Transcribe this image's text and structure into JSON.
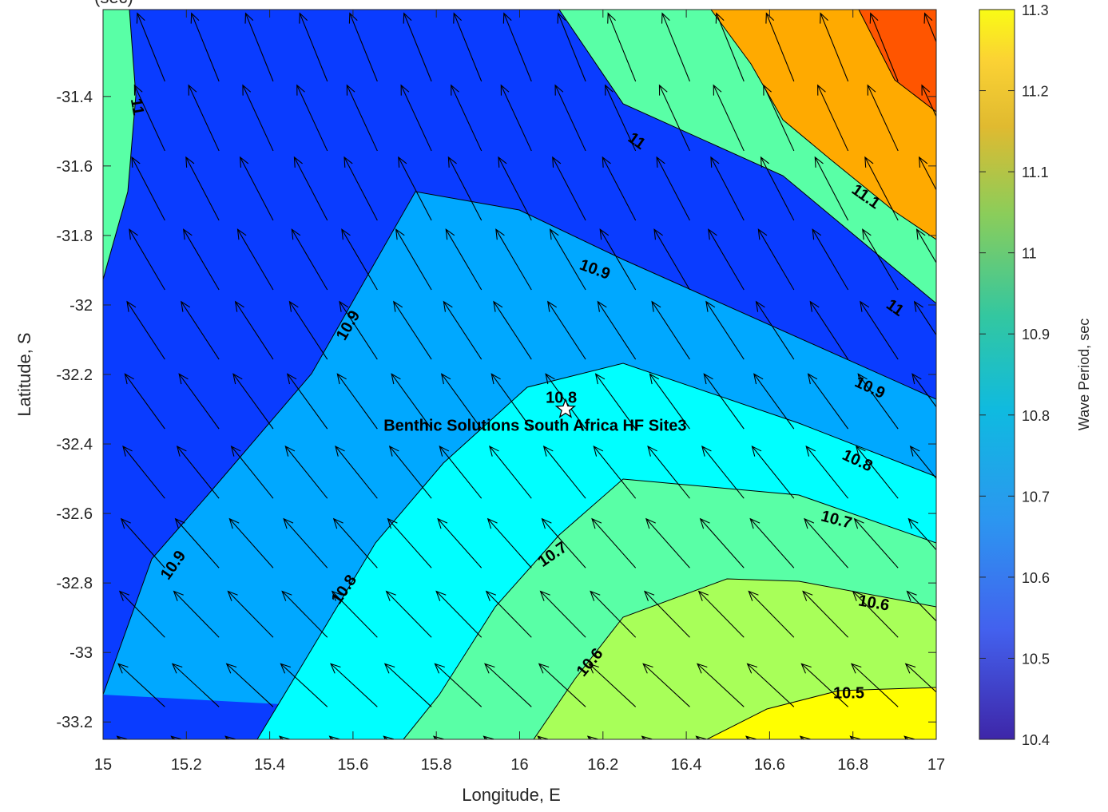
{
  "chart_data": {
    "type": "heatmap",
    "subtype": "filled-contour-with-quiver",
    "title_fragment": "(sec)",
    "xlabel": "Longitude, E",
    "ylabel": "Latitude, S",
    "colorbar_label": "Wave Period, sec",
    "xlim": [
      15,
      17
    ],
    "ylim": [
      -33.25,
      -31.15
    ],
    "x_ticks": [
      "15",
      "15.2",
      "15.4",
      "15.6",
      "15.8",
      "16",
      "16.2",
      "16.4",
      "16.6",
      "16.8",
      "17"
    ],
    "y_ticks": [
      "-31.4",
      "-31.6",
      "-31.8",
      "-32",
      "-32.2",
      "-32.4",
      "-32.6",
      "-32.8",
      "-33",
      "-33.2"
    ],
    "colorbar_ticks": [
      "10.4",
      "10.5",
      "10.6",
      "10.7",
      "10.8",
      "10.9",
      "11",
      "11.1",
      "11.2",
      "11.3"
    ],
    "clim": [
      10.4,
      11.3
    ],
    "levels": [
      {
        "value": 10.5,
        "color": "#0000ff"
      },
      {
        "value": 10.6,
        "color": "#0a3cff"
      },
      {
        "value": 10.7,
        "color": "#00a8ff"
      },
      {
        "value": 10.8,
        "color": "#00ffff"
      },
      {
        "value": 10.9,
        "color": "#59ffa6"
      },
      {
        "value": 11.0,
        "color": "#a8ff59"
      },
      {
        "value": 11.1,
        "color": "#ffff00"
      },
      {
        "value": 11.2,
        "color": "#ffaa00"
      },
      {
        "value": 11.3,
        "color": "#ff5500"
      }
    ],
    "contour_labels": [
      {
        "text": "11",
        "lon": 15.08,
        "lat": -31.43
      },
      {
        "text": "11",
        "lon": 16.28,
        "lat": -31.53
      },
      {
        "text": "11.1",
        "lon": 16.83,
        "lat": -31.69
      },
      {
        "text": "10.9",
        "lon": 16.18,
        "lat": -31.9
      },
      {
        "text": "11",
        "lon": 16.9,
        "lat": -32.01
      },
      {
        "text": "10.9",
        "lon": 15.59,
        "lat": -32.06
      },
      {
        "text": "10.8",
        "lon": 16.1,
        "lat": -32.27
      },
      {
        "text": "10.9",
        "lon": 16.84,
        "lat": -32.24
      },
      {
        "text": "10.8",
        "lon": 16.81,
        "lat": -32.45
      },
      {
        "text": "10.7",
        "lon": 16.76,
        "lat": -32.62
      },
      {
        "text": "10.7",
        "lon": 16.08,
        "lat": -32.72
      },
      {
        "text": "10.9",
        "lon": 15.17,
        "lat": -32.75
      },
      {
        "text": "10.8",
        "lon": 15.58,
        "lat": -32.82
      },
      {
        "text": "10.6",
        "lon": 16.85,
        "lat": -32.86
      },
      {
        "text": "10.6",
        "lon": 16.17,
        "lat": -33.03
      },
      {
        "text": "10.5",
        "lon": 16.79,
        "lat": -33.12
      }
    ],
    "site": {
      "name": "Benthic Solutions South Africa HF Site3",
      "lon": 16.11,
      "lat": -32.3
    },
    "vector_field": {
      "lons": [
        15.11,
        15.24,
        15.37,
        15.5,
        15.62,
        15.75,
        15.87,
        15.99,
        16.12,
        16.24,
        16.37,
        16.5,
        16.62,
        16.75,
        16.87,
        17.0
      ],
      "lats": [
        -31.26,
        -31.46,
        -31.66,
        -31.86,
        -32.06,
        -32.26,
        -32.46,
        -32.66,
        -32.86,
        -33.06,
        -33.26
      ],
      "direction": "toward north-northwest, turning more westward to the south"
    }
  }
}
